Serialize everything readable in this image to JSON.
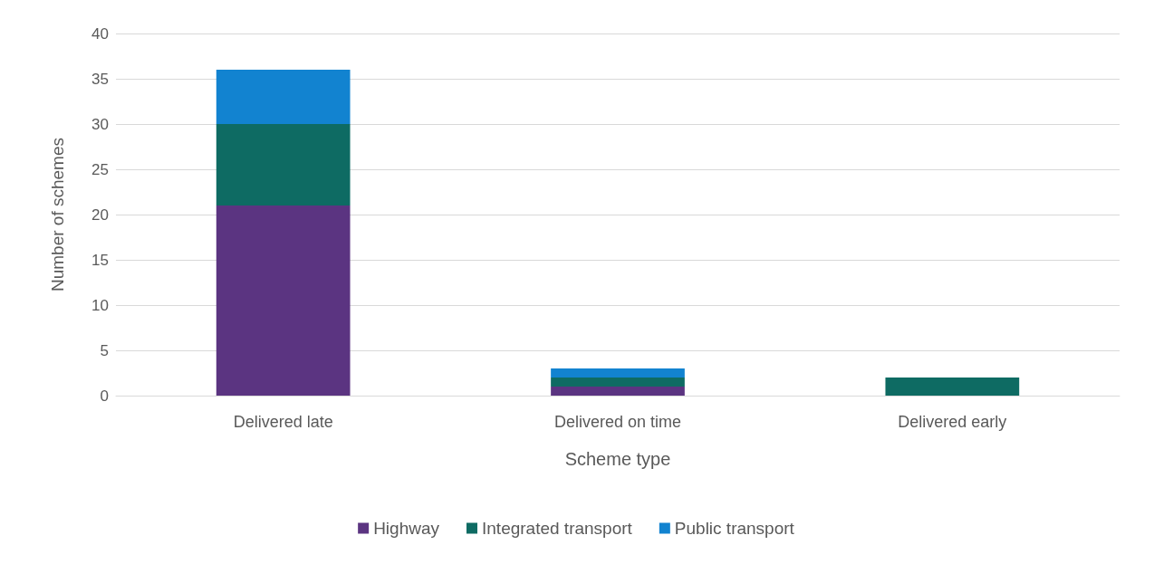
{
  "chart_data": {
    "type": "bar",
    "stacked": true,
    "xlabel": "Scheme type",
    "ylabel": "Number of schemes",
    "categories": [
      "Delivered late",
      "Delivered on time",
      "Delivered early"
    ],
    "series": [
      {
        "name": "Highway",
        "color": "#5b3481",
        "values": [
          21,
          1,
          0
        ]
      },
      {
        "name": "Integrated transport",
        "color": "#0e6b63",
        "values": [
          9,
          1,
          2
        ]
      },
      {
        "name": "Public transport",
        "color": "#1283d0",
        "values": [
          6,
          1,
          0
        ]
      }
    ],
    "ylim": [
      0,
      40
    ],
    "yticks": [
      0,
      5,
      10,
      15,
      20,
      25,
      30,
      35,
      40
    ],
    "grid": "y",
    "legend": "bottom"
  }
}
